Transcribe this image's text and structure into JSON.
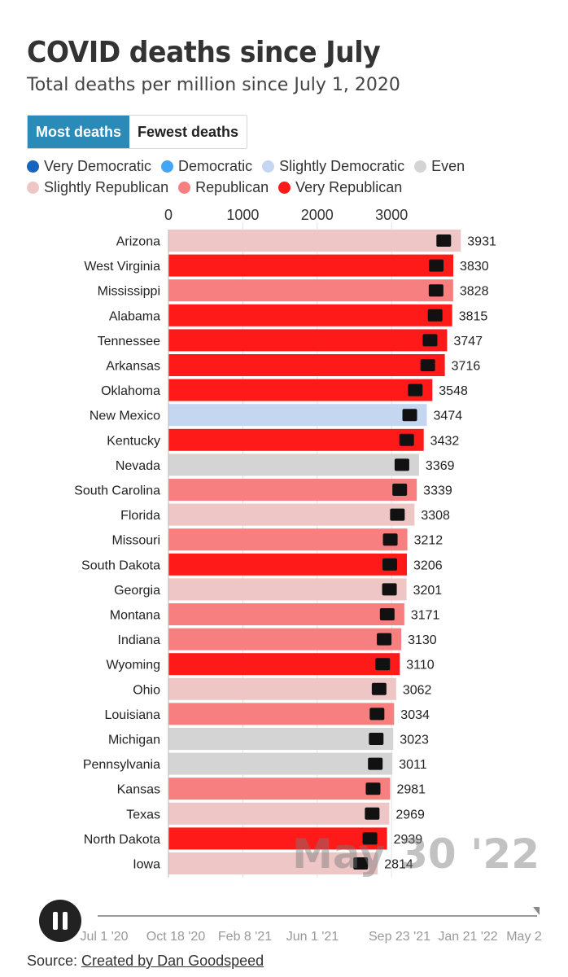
{
  "header": {
    "title": "COVID deaths since July",
    "subtitle": "Total deaths per million since July 1, 2020"
  },
  "toggle": {
    "most_label": "Most deaths",
    "fewest_label": "Fewest deaths"
  },
  "legend": [
    {
      "label": "Very Democratic",
      "color": "#1565c0"
    },
    {
      "label": "Democratic",
      "color": "#42a5f5"
    },
    {
      "label": "Slightly Democratic",
      "color": "#c5d6f0"
    },
    {
      "label": "Even",
      "color": "#d4d4d4"
    },
    {
      "label": "Slightly Republican",
      "color": "#efc6c6"
    },
    {
      "label": "Republican",
      "color": "#f77f7f"
    },
    {
      "label": "Very Republican",
      "color": "#ff1a1a"
    }
  ],
  "chart_data": {
    "type": "bar",
    "orientation": "horizontal",
    "title": "COVID deaths since July",
    "subtitle": "Total deaths per million since July 1, 2020",
    "x_ticks": [
      0,
      1000,
      2000,
      3000
    ],
    "xlim": [
      0,
      4000
    ],
    "grid": true,
    "categories": [
      "Arizona",
      "West Virginia",
      "Mississippi",
      "Alabama",
      "Tennessee",
      "Arkansas",
      "Oklahoma",
      "New Mexico",
      "Kentucky",
      "Nevada",
      "South Carolina",
      "Florida",
      "Missouri",
      "South Dakota",
      "Georgia",
      "Montana",
      "Indiana",
      "Wyoming",
      "Ohio",
      "Louisiana",
      "Michigan",
      "Pennsylvania",
      "Kansas",
      "Texas",
      "North Dakota",
      "Iowa"
    ],
    "values": [
      3931,
      3830,
      3828,
      3815,
      3747,
      3716,
      3548,
      3474,
      3432,
      3369,
      3339,
      3308,
      3212,
      3206,
      3201,
      3171,
      3130,
      3110,
      3062,
      3034,
      3023,
      3011,
      2981,
      2969,
      2939,
      2814
    ],
    "leaning": [
      "Slightly Republican",
      "Very Republican",
      "Republican",
      "Very Republican",
      "Very Republican",
      "Very Republican",
      "Very Republican",
      "Slightly Democratic",
      "Very Republican",
      "Even",
      "Republican",
      "Slightly Republican",
      "Republican",
      "Very Republican",
      "Slightly Republican",
      "Republican",
      "Republican",
      "Very Republican",
      "Slightly Republican",
      "Republican",
      "Even",
      "Even",
      "Republican",
      "Slightly Republican",
      "Very Republican",
      "Slightly Republican"
    ],
    "date_label": "May 30 '22"
  },
  "colors": {
    "Very Democratic": "#1565c0",
    "Democratic": "#42a5f5",
    "Slightly Democratic": "#c5d6f0",
    "Even": "#d4d4d4",
    "Slightly Republican": "#efc6c6",
    "Republican": "#f77f7f",
    "Very Republican": "#ff1a1a"
  },
  "timeline": {
    "ticks": [
      "Jul 1 '20",
      "Oct 18 '20",
      "Feb 8 '21",
      "Jun 1 '21",
      "Sep 23 '21",
      "Jan 21 '22",
      "May 2"
    ],
    "progress": 1.0
  },
  "source": {
    "prefix": "Source: ",
    "link_text": "Created by Dan Goodspeed"
  }
}
